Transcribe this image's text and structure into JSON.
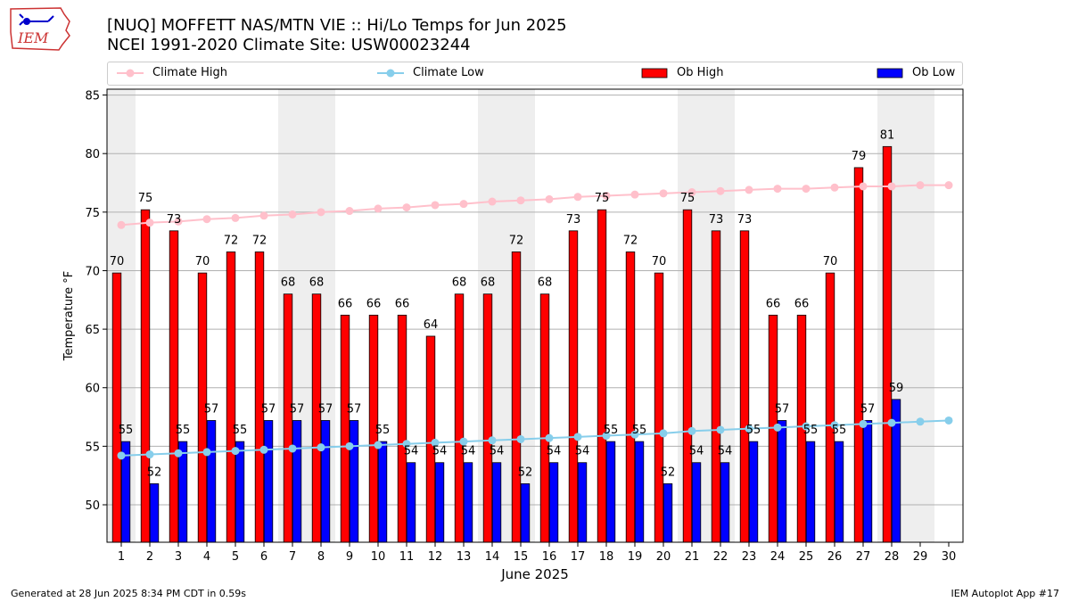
{
  "header": {
    "logo_text": "IEM",
    "title_line1": "[NUQ] MOFFETT NAS/MTN VIE :: Hi/Lo Temps for Jun 2025",
    "title_line2": "NCEI 1991-2020 Climate Site: USW00023244"
  },
  "legend": {
    "items": [
      "Climate High",
      "Climate Low",
      "Ob High",
      "Ob Low"
    ]
  },
  "footer": {
    "left": "Generated at 28 Jun 2025 8:34 PM CDT in 0.59s",
    "right": "IEM Autoplot App #17"
  },
  "colors": {
    "ob_high": "#ff0000",
    "ob_low": "#0000ff",
    "climate_high": "#ffc0cb",
    "climate_low": "#87ceeb",
    "weekend_band": "#eeeeee",
    "grid": "#b0b0b0"
  },
  "chart_data": {
    "type": "bar",
    "title": "[NUQ] MOFFETT NAS/MTN VIE :: Hi/Lo Temps for Jun 2025",
    "subtitle": "NCEI 1991-2020 Climate Site: USW00023244",
    "xlabel": "June 2025",
    "ylabel": "Temperature °F",
    "ylim": [
      46.8,
      85.5
    ],
    "yticks": [
      50,
      55,
      60,
      65,
      70,
      75,
      80,
      85
    ],
    "grid": "horizontal",
    "legend_position": "top",
    "x": [
      1,
      2,
      3,
      4,
      5,
      6,
      7,
      8,
      9,
      10,
      11,
      12,
      13,
      14,
      15,
      16,
      17,
      18,
      19,
      20,
      21,
      22,
      23,
      24,
      25,
      26,
      27,
      28,
      29,
      30
    ],
    "shaded_weekends": [
      [
        1,
        1
      ],
      [
        7,
        8
      ],
      [
        14,
        15
      ],
      [
        21,
        22
      ],
      [
        28,
        29
      ]
    ],
    "series": [
      {
        "name": "Ob High",
        "kind": "bar",
        "values": [
          69.8,
          75.2,
          73.4,
          69.8,
          71.6,
          71.6,
          68.0,
          68.0,
          66.2,
          66.2,
          66.2,
          64.4,
          68.0,
          68.0,
          71.6,
          68.0,
          73.4,
          75.2,
          71.6,
          69.8,
          75.2,
          73.4,
          73.4,
          66.2,
          66.2,
          69.8,
          78.8,
          80.6,
          null,
          null
        ],
        "labels": [
          "70",
          "75",
          "73",
          "70",
          "72",
          "72",
          "68",
          "68",
          "66",
          "66",
          "66",
          "64",
          "68",
          "68",
          "72",
          "68",
          "73",
          "75",
          "72",
          "70",
          "75",
          "73",
          "73",
          "66",
          "66",
          "70",
          "79",
          "81",
          "",
          ""
        ]
      },
      {
        "name": "Ob Low",
        "kind": "bar",
        "values": [
          55.4,
          51.8,
          55.4,
          57.2,
          55.4,
          57.2,
          57.2,
          57.2,
          57.2,
          55.4,
          53.6,
          53.6,
          53.6,
          53.6,
          51.8,
          53.6,
          53.6,
          55.4,
          55.4,
          51.8,
          53.6,
          53.6,
          55.4,
          57.2,
          55.4,
          55.4,
          57.2,
          59.0,
          null,
          null
        ],
        "labels": [
          "55",
          "52",
          "55",
          "57",
          "55",
          "57",
          "57",
          "57",
          "57",
          "55",
          "54",
          "54",
          "54",
          "54",
          "52",
          "54",
          "54",
          "55",
          "55",
          "52",
          "54",
          "54",
          "55",
          "57",
          "55",
          "55",
          "57",
          "59",
          "",
          ""
        ]
      },
      {
        "name": "Climate High",
        "kind": "line",
        "values": [
          73.9,
          74.1,
          74.2,
          74.4,
          74.5,
          74.7,
          74.8,
          75.0,
          75.1,
          75.3,
          75.4,
          75.6,
          75.7,
          75.9,
          76.0,
          76.1,
          76.3,
          76.4,
          76.5,
          76.6,
          76.7,
          76.8,
          76.9,
          77.0,
          77.0,
          77.1,
          77.2,
          77.2,
          77.3,
          77.3
        ]
      },
      {
        "name": "Climate Low",
        "kind": "line",
        "values": [
          54.2,
          54.3,
          54.4,
          54.5,
          54.6,
          54.7,
          54.8,
          54.9,
          55.0,
          55.1,
          55.2,
          55.3,
          55.4,
          55.5,
          55.6,
          55.7,
          55.8,
          55.9,
          56.0,
          56.1,
          56.3,
          56.4,
          56.5,
          56.6,
          56.7,
          56.8,
          56.9,
          57.0,
          57.1,
          57.2
        ]
      }
    ]
  }
}
